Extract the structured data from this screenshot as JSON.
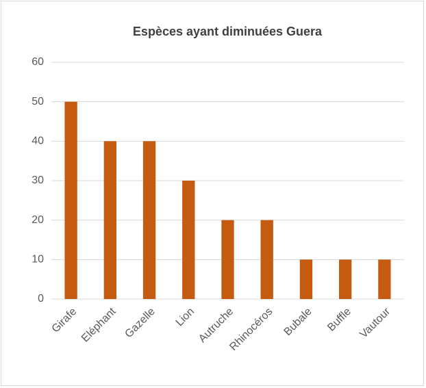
{
  "chart_data": {
    "type": "bar",
    "title": "Espèces ayant diminuées Guera",
    "categories": [
      "Girafe",
      "Eléphant",
      "Gazelle",
      "Lion",
      "Autruche",
      "Rhinocéros",
      "Bubale",
      "Buffle",
      "Vautour"
    ],
    "values": [
      50,
      40,
      40,
      30,
      20,
      20,
      10,
      10,
      10
    ],
    "color": "#c55a11",
    "ylim": [
      0,
      60
    ],
    "yticks": [
      0,
      10,
      20,
      30,
      40,
      50,
      60
    ],
    "grid": true
  }
}
